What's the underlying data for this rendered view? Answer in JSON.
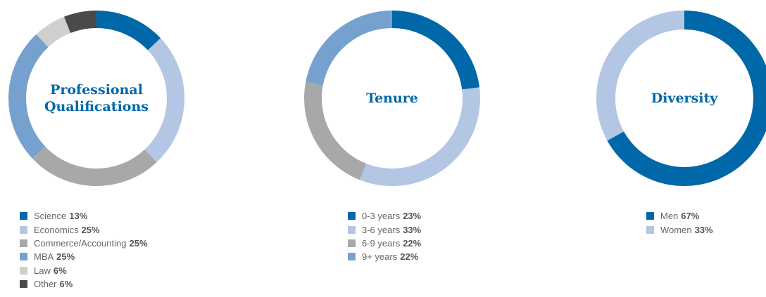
{
  "chart_data": [
    {
      "type": "pie",
      "title": "Professional Qualifications",
      "categories": [
        "Science",
        "Economics",
        "Commerce/Accounting",
        "MBA",
        "Law",
        "Other"
      ],
      "values": [
        13,
        25,
        25,
        25,
        6,
        6
      ],
      "value_labels": [
        "13%",
        "25%",
        "25%",
        "25%",
        "6%",
        "6%"
      ],
      "colors": [
        "#0068a8",
        "#b3c6e3",
        "#a7a8aa",
        "#76a1cf",
        "#cfcfd0",
        "#4a4a4c"
      ]
    },
    {
      "type": "pie",
      "title": "Tenure",
      "categories": [
        "0-3 years",
        "3-6 years",
        "6-9 years",
        "9+ years"
      ],
      "values": [
        23,
        33,
        22,
        22
      ],
      "value_labels": [
        "23%",
        "33%",
        "22%",
        "22%"
      ],
      "colors": [
        "#0068a8",
        "#b3c6e3",
        "#a7a8aa",
        "#76a1cf"
      ]
    },
    {
      "type": "pie",
      "title": "Diversity",
      "categories": [
        "Men",
        "Women"
      ],
      "values": [
        67,
        33
      ],
      "value_labels": [
        "67%",
        "33%"
      ],
      "colors": [
        "#0068a8",
        "#b3c6e3"
      ]
    }
  ]
}
